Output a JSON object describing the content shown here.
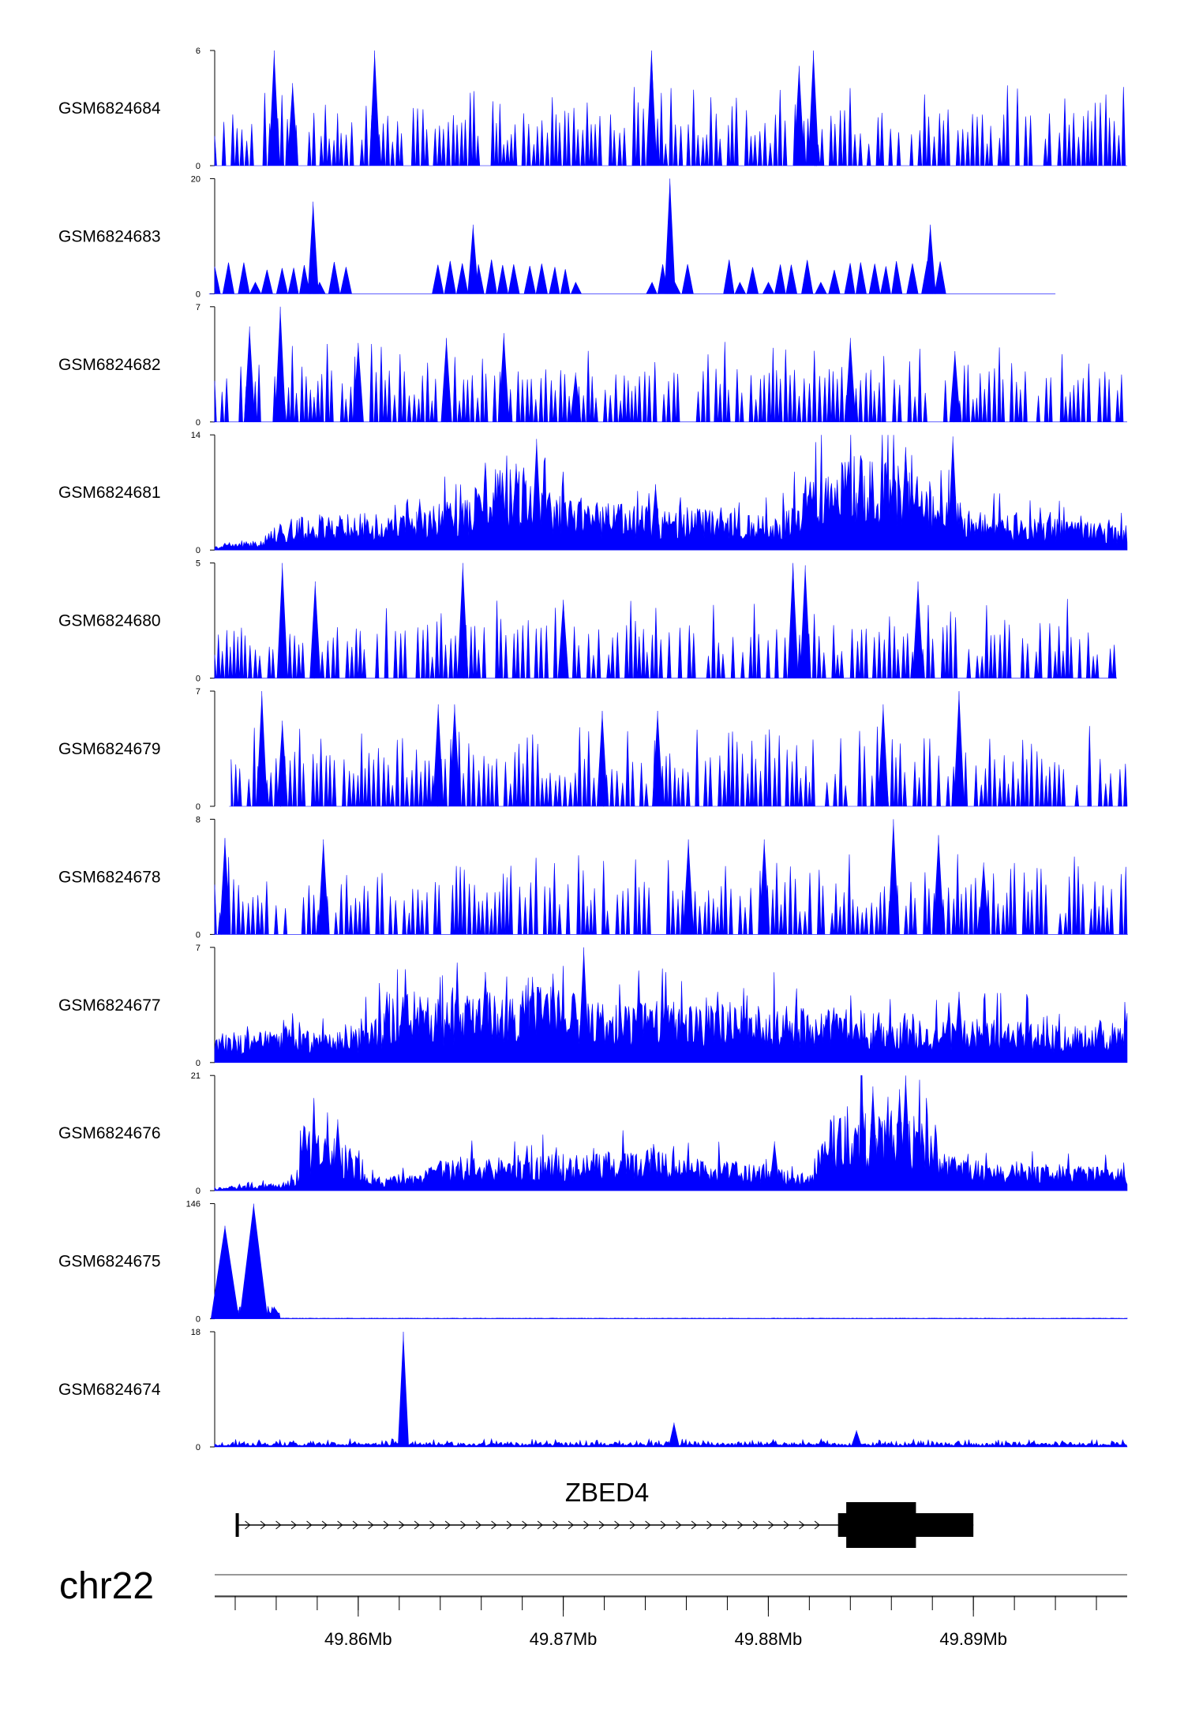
{
  "chart_data": {
    "type": "area",
    "x_range": [
      49853000,
      49897500
    ],
    "series_color": "#0000ff",
    "tracks": [
      {
        "name": "GSM6824684",
        "ymax_label": "6",
        "ymin_label": "0",
        "ymax": 6,
        "seed": 11,
        "style": "spiky",
        "peaks": [
          [
            49855900,
            6
          ],
          [
            49860800,
            6
          ],
          [
            49874300,
            6
          ],
          [
            49882200,
            6
          ],
          [
            49856800,
            4.3
          ],
          [
            49881500,
            5.2
          ]
        ]
      },
      {
        "name": "GSM6824683",
        "ymax_label": "20",
        "ymin_label": "0",
        "ymax": 20,
        "seed": 23,
        "style": "sparse",
        "x_end": 49894000,
        "peaks": [
          [
            49857800,
            16
          ],
          [
            49875200,
            20
          ],
          [
            49865600,
            12
          ],
          [
            49887900,
            12
          ]
        ],
        "gaps": [
          [
            49870800,
            49874300
          ],
          [
            49876200,
            49877800
          ],
          [
            49888500,
            49894000
          ],
          [
            49860000,
            49861600
          ],
          [
            49861800,
            49863500
          ]
        ]
      },
      {
        "name": "GSM6824682",
        "ymax_label": "7",
        "ymin_label": "0",
        "ymax": 7,
        "seed": 37,
        "style": "spiky",
        "peaks": [
          [
            49856200,
            7
          ],
          [
            49854700,
            5.8
          ],
          [
            49860000,
            4.8
          ],
          [
            49864300,
            5.1
          ],
          [
            49867100,
            5.4
          ],
          [
            49870600,
            3.0
          ],
          [
            49884000,
            5.1
          ],
          [
            49889100,
            4.3
          ]
        ]
      },
      {
        "name": "GSM6824681",
        "ymax_label": "14",
        "ymin_label": "0",
        "ymax": 14,
        "seed": 41,
        "style": "dense",
        "baseline_profile": [
          [
            49853000,
            0.3
          ],
          [
            49855000,
            0.8
          ],
          [
            49856500,
            2.5
          ],
          [
            49859000,
            3.2
          ],
          [
            49862000,
            2.8
          ],
          [
            49865000,
            4.2
          ],
          [
            49867000,
            7.0
          ],
          [
            49869500,
            4.5
          ],
          [
            49872000,
            3.8
          ],
          [
            49875000,
            3.6
          ],
          [
            49878000,
            3.2
          ],
          [
            49880500,
            2.6
          ],
          [
            49883000,
            7.5
          ],
          [
            49886000,
            8.0
          ],
          [
            49888000,
            5.0
          ],
          [
            49891000,
            3.0
          ],
          [
            49897500,
            2.0
          ]
        ],
        "peaks": [
          [
            49868700,
            13.5
          ],
          [
            49867700,
            10.5
          ],
          [
            49884500,
            11.5
          ],
          [
            49886700,
            12.5
          ],
          [
            49889000,
            13.8
          ],
          [
            49874500,
            8.0
          ],
          [
            49863000,
            6.2
          ]
        ]
      },
      {
        "name": "GSM6824680",
        "ymax_label": "5",
        "ymin_label": "0",
        "ymax": 5,
        "seed": 53,
        "style": "spiky",
        "x_end": 49897000,
        "peaks": [
          [
            49856300,
            5
          ],
          [
            49865100,
            5
          ],
          [
            49881200,
            5
          ],
          [
            49881800,
            4.9
          ],
          [
            49887300,
            4.2
          ],
          [
            49857900,
            4.2
          ],
          [
            49870000,
            3.4
          ]
        ]
      },
      {
        "name": "GSM6824679",
        "ymax_label": "7",
        "ymin_label": "0",
        "ymax": 7,
        "seed": 61,
        "style": "spiky",
        "x_start": 49853800,
        "peaks": [
          [
            49855300,
            7
          ],
          [
            49889300,
            7
          ],
          [
            49856300,
            5.2
          ],
          [
            49863900,
            6.2
          ],
          [
            49864700,
            6.2
          ],
          [
            49871900,
            5.8
          ],
          [
            49874600,
            5.8
          ],
          [
            49885600,
            6.2
          ]
        ]
      },
      {
        "name": "GSM6824678",
        "ymax_label": "8",
        "ymin_label": "0",
        "ymax": 8,
        "seed": 73,
        "style": "spiky",
        "peaks": [
          [
            49853500,
            6.7
          ],
          [
            49858300,
            6.6
          ],
          [
            49879800,
            6.6
          ],
          [
            49886100,
            8.0
          ],
          [
            49888300,
            6.9
          ],
          [
            49876100,
            6.6
          ],
          [
            49890500,
            5.0
          ]
        ]
      },
      {
        "name": "GSM6824677",
        "ymax_label": "7",
        "ymin_label": "0",
        "ymax": 7,
        "seed": 83,
        "style": "dense",
        "baseline_profile": [
          [
            49853000,
            1.2
          ],
          [
            49860000,
            1.6
          ],
          [
            49862000,
            2.8
          ],
          [
            49866000,
            2.8
          ],
          [
            49868000,
            3.2
          ],
          [
            49872000,
            2.6
          ],
          [
            49878000,
            2.4
          ],
          [
            49884000,
            2.2
          ],
          [
            49890000,
            1.8
          ],
          [
            49897500,
            1.6
          ]
        ],
        "peaks": [
          [
            49871000,
            7
          ],
          [
            49866200,
            5.5
          ],
          [
            49868500,
            5.2
          ],
          [
            49869500,
            5.4
          ],
          [
            49861400,
            4.3
          ],
          [
            49889300,
            4.3
          ]
        ]
      },
      {
        "name": "GSM6824676",
        "ymax_label": "21",
        "ymin_label": "0",
        "ymax": 21,
        "seed": 97,
        "style": "dense",
        "baseline_profile": [
          [
            49853000,
            0.4
          ],
          [
            49856000,
            0.9
          ],
          [
            49857000,
            1.5
          ],
          [
            49857300,
            8.0
          ],
          [
            49859500,
            6.0
          ],
          [
            49860500,
            1.6
          ],
          [
            49863000,
            2.0
          ],
          [
            49864000,
            3.8
          ],
          [
            49868000,
            4.2
          ],
          [
            49870000,
            4.6
          ],
          [
            49874000,
            5.0
          ],
          [
            49879000,
            3.4
          ],
          [
            49882000,
            2.0
          ],
          [
            49883000,
            9.0
          ],
          [
            49887000,
            10.0
          ],
          [
            49888500,
            4.8
          ],
          [
            49892000,
            3.2
          ],
          [
            49897500,
            3.0
          ]
        ],
        "peaks": [
          [
            49886700,
            21
          ],
          [
            49885100,
            19
          ],
          [
            49886400,
            18.5
          ],
          [
            49884600,
            16
          ],
          [
            49859000,
            13
          ],
          [
            49880300,
            9
          ],
          [
            49874400,
            8.5
          ]
        ]
      },
      {
        "name": "GSM6824675",
        "ymax_label": "146",
        "ymin_label": "0",
        "ymax": 146,
        "seed": 101,
        "style": "bigpeaks",
        "peaks": [
          [
            49853500,
            118
          ],
          [
            49854900,
            146
          ]
        ]
      },
      {
        "name": "GSM6824674",
        "ymax_label": "18",
        "ymin_label": "0",
        "ymax": 18,
        "seed": 113,
        "style": "lowpeak",
        "peaks": [
          [
            49862200,
            18
          ],
          [
            49875400,
            3.8
          ],
          [
            49884300,
            2.6
          ]
        ]
      }
    ],
    "gene": {
      "name": "ZBED4",
      "strand": "+",
      "tx_start": 49854100,
      "tx_end": 49890000,
      "thick_start": 49883800,
      "thick_end": 49887200,
      "exons": [
        [
          49854100,
          49854150
        ],
        [
          49883400,
          49890000
        ]
      ]
    },
    "chromosome": "chr22",
    "ticks": [
      {
        "pos": 49860000,
        "label": "49.86Mb"
      },
      {
        "pos": 49870000,
        "label": "49.87Mb"
      },
      {
        "pos": 49880000,
        "label": "49.88Mb"
      },
      {
        "pos": 49890000,
        "label": "49.89Mb"
      }
    ],
    "minor_tick_step": 2000
  }
}
